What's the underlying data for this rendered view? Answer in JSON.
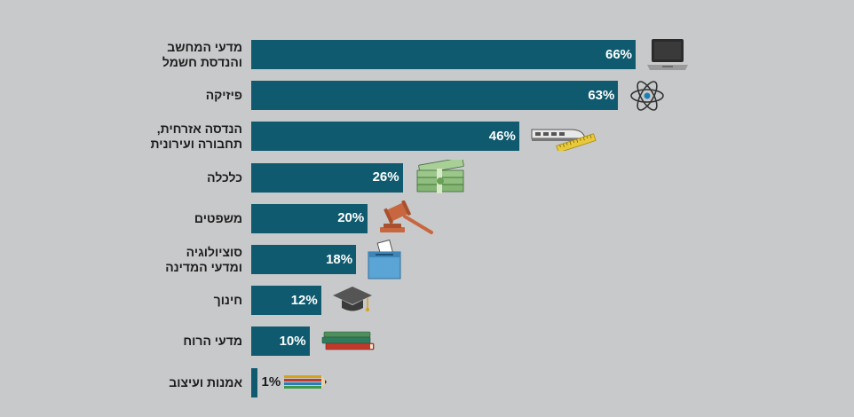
{
  "chart_data": {
    "type": "bar",
    "orientation": "horizontal",
    "categories": [
      "מדעי המחשב\nוהנדסת חשמל",
      "פיזיקה",
      "הנדסה אזרחית,\nתחבורה ועירונית",
      "כלכלה",
      "משפטים",
      "סוציולוגיה\nומדעי המדינה",
      "חינוך",
      "מדעי הרוח",
      "אמנות ועיצוב"
    ],
    "values": [
      66,
      63,
      46,
      26,
      20,
      18,
      12,
      10,
      1
    ],
    "value_labels": [
      "66%",
      "63%",
      "46%",
      "26%",
      "20%",
      "18%",
      "12%",
      "10%",
      "1%"
    ],
    "xlim": [
      0,
      66
    ],
    "title": "",
    "xlabel": "",
    "ylabel": "",
    "grid": false,
    "legend": "none",
    "colors": {
      "bar": "#0f5a6e",
      "background": "#c8c9cb",
      "label": "#1d1d1d"
    },
    "icons": [
      "laptop-icon",
      "atom-icon",
      "train-ruler-icon",
      "money-stack-icon",
      "gavel-icon",
      "ballot-box-icon",
      "graduation-cap-icon",
      "books-icon",
      "pencils-icon"
    ]
  }
}
